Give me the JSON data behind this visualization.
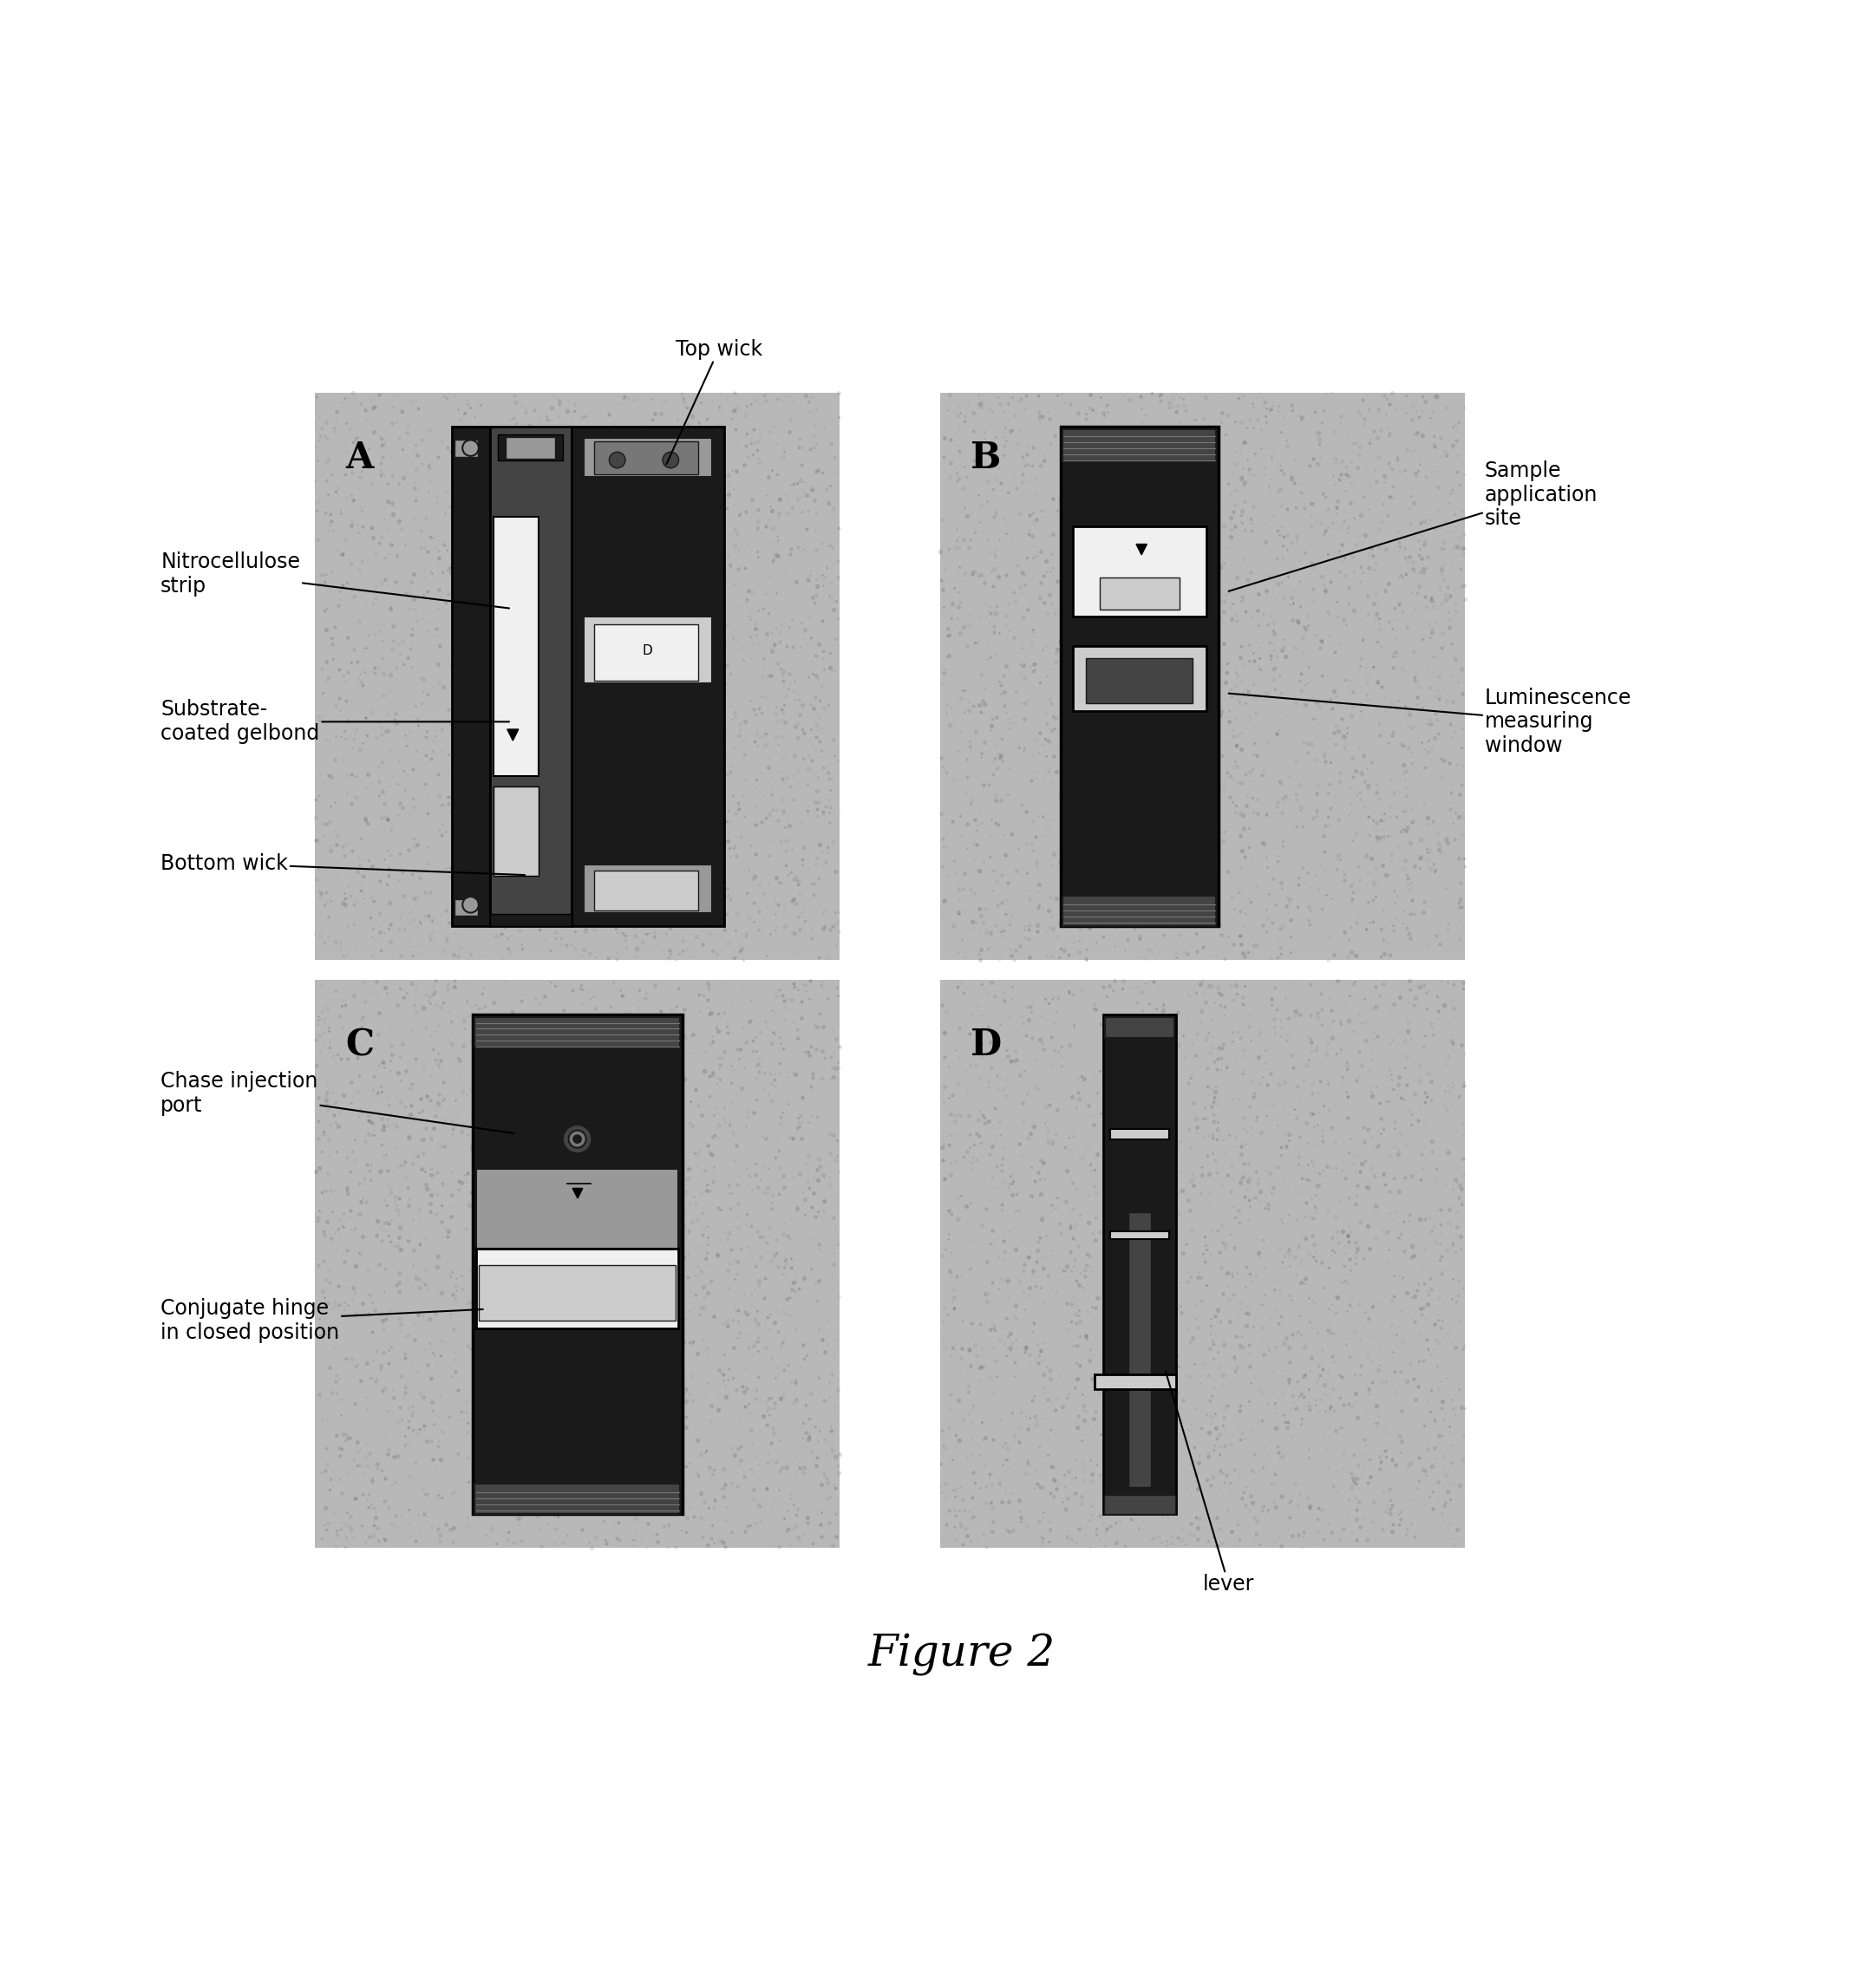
{
  "figure_title": "Figure 2",
  "figure_title_fontsize": 36,
  "background_color": "#ffffff",
  "panel_label_fontsize": 30,
  "annotation_fontsize": 17,
  "top_wick_label": "Top wick",
  "bottom_wick_label": "Bottom wick",
  "nitrocellulose_label": "Nitrocellulose\nstrip",
  "substrate_label": "Substrate-\ncoated gelbond",
  "sample_app_label": "Sample\napplication\nsite",
  "luminescence_label": "Luminescence\nmeasuring\nwindow",
  "chase_label": "Chase injection\nport",
  "conjugate_label": "Conjugate hinge\nin closed position",
  "lever_label": "lever",
  "panel_bg": "#b8b8b8",
  "device_dark": "#1a1a1a",
  "device_mid": "#444444",
  "device_light": "#777777",
  "device_very_dark": "#000000",
  "white": "#f0f0f0",
  "light_gray": "#cccccc",
  "medium_gray": "#999999",
  "panel_edge": "#555555"
}
